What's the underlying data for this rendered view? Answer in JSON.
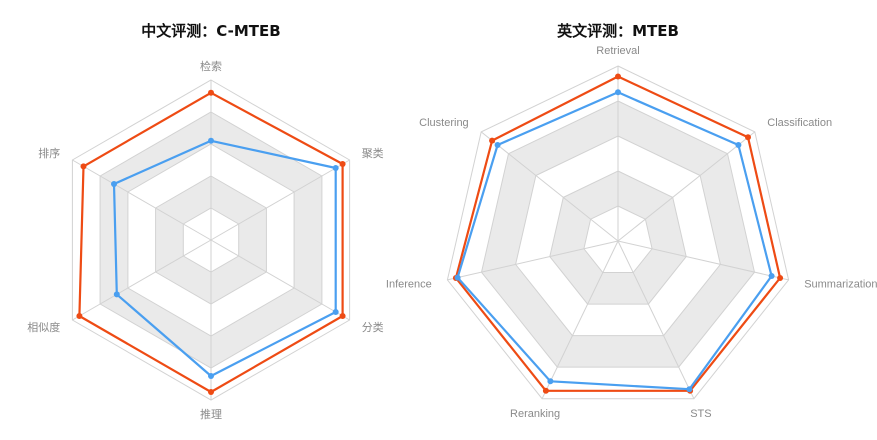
{
  "colors": {
    "series_a": "#ee4b14",
    "series_b": "#4a9ff0",
    "band_dark": "#eaeaea",
    "band_light": "#ffffff",
    "grid": "#d2d2d2"
  },
  "chart_data": [
    {
      "type": "radar",
      "title": "中文评测：C-MTEB",
      "axes": [
        "检索",
        "聚类",
        "分类",
        "推理",
        "相似度",
        "排序"
      ],
      "range": [
        0,
        100
      ],
      "rings": 5,
      "series": [
        {
          "values": [
            92,
            95,
            95,
            95,
            95,
            92
          ]
        },
        {
          "values": [
            62,
            90,
            90,
            85,
            68,
            70
          ]
        }
      ]
    },
    {
      "type": "radar",
      "title": "英文评测：MTEB",
      "axes": [
        "Retrieval",
        "Classification",
        "Summarization",
        "STS",
        "Reranking",
        "Inference",
        "Clustering"
      ],
      "range": [
        0,
        100
      ],
      "rings": 5,
      "series": [
        {
          "values": [
            94,
            95,
            95,
            95,
            95,
            95,
            92
          ]
        },
        {
          "values": [
            85,
            88,
            90,
            94,
            89,
            94,
            88
          ]
        }
      ]
    }
  ]
}
